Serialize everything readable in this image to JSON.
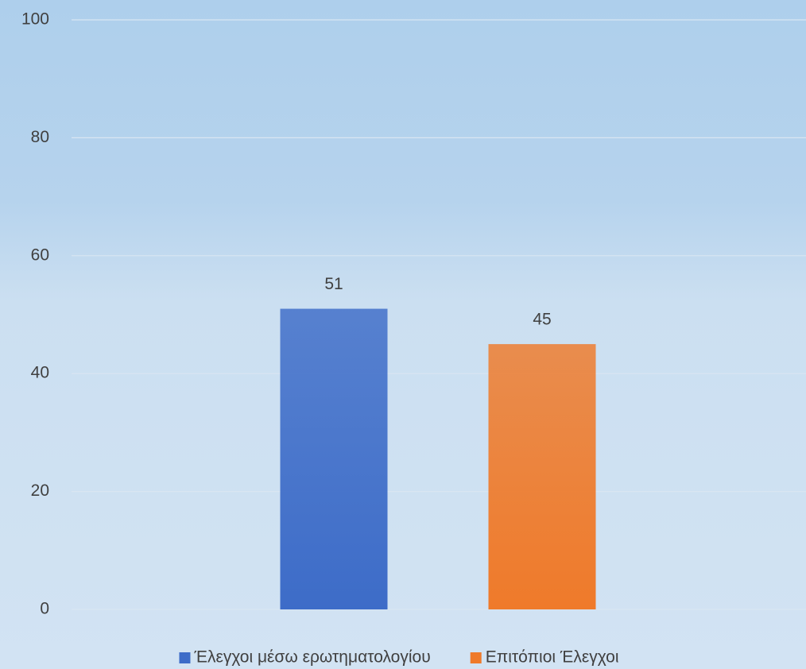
{
  "chart_data": {
    "type": "bar",
    "categories": [
      null
    ],
    "series": [
      {
        "name": "Έλεγχοι μέσω ερωτηματολογίου",
        "color": "#3d6cc8",
        "values": [
          51
        ]
      },
      {
        "name": "Επιτόπιοι Έλεγχοι",
        "color": "#ef7a2a",
        "values": [
          45
        ]
      }
    ],
    "ylim": [
      0,
      100
    ],
    "yticks": [
      0,
      20,
      40,
      60,
      80,
      100
    ],
    "grid": true,
    "legend": "bottom"
  }
}
